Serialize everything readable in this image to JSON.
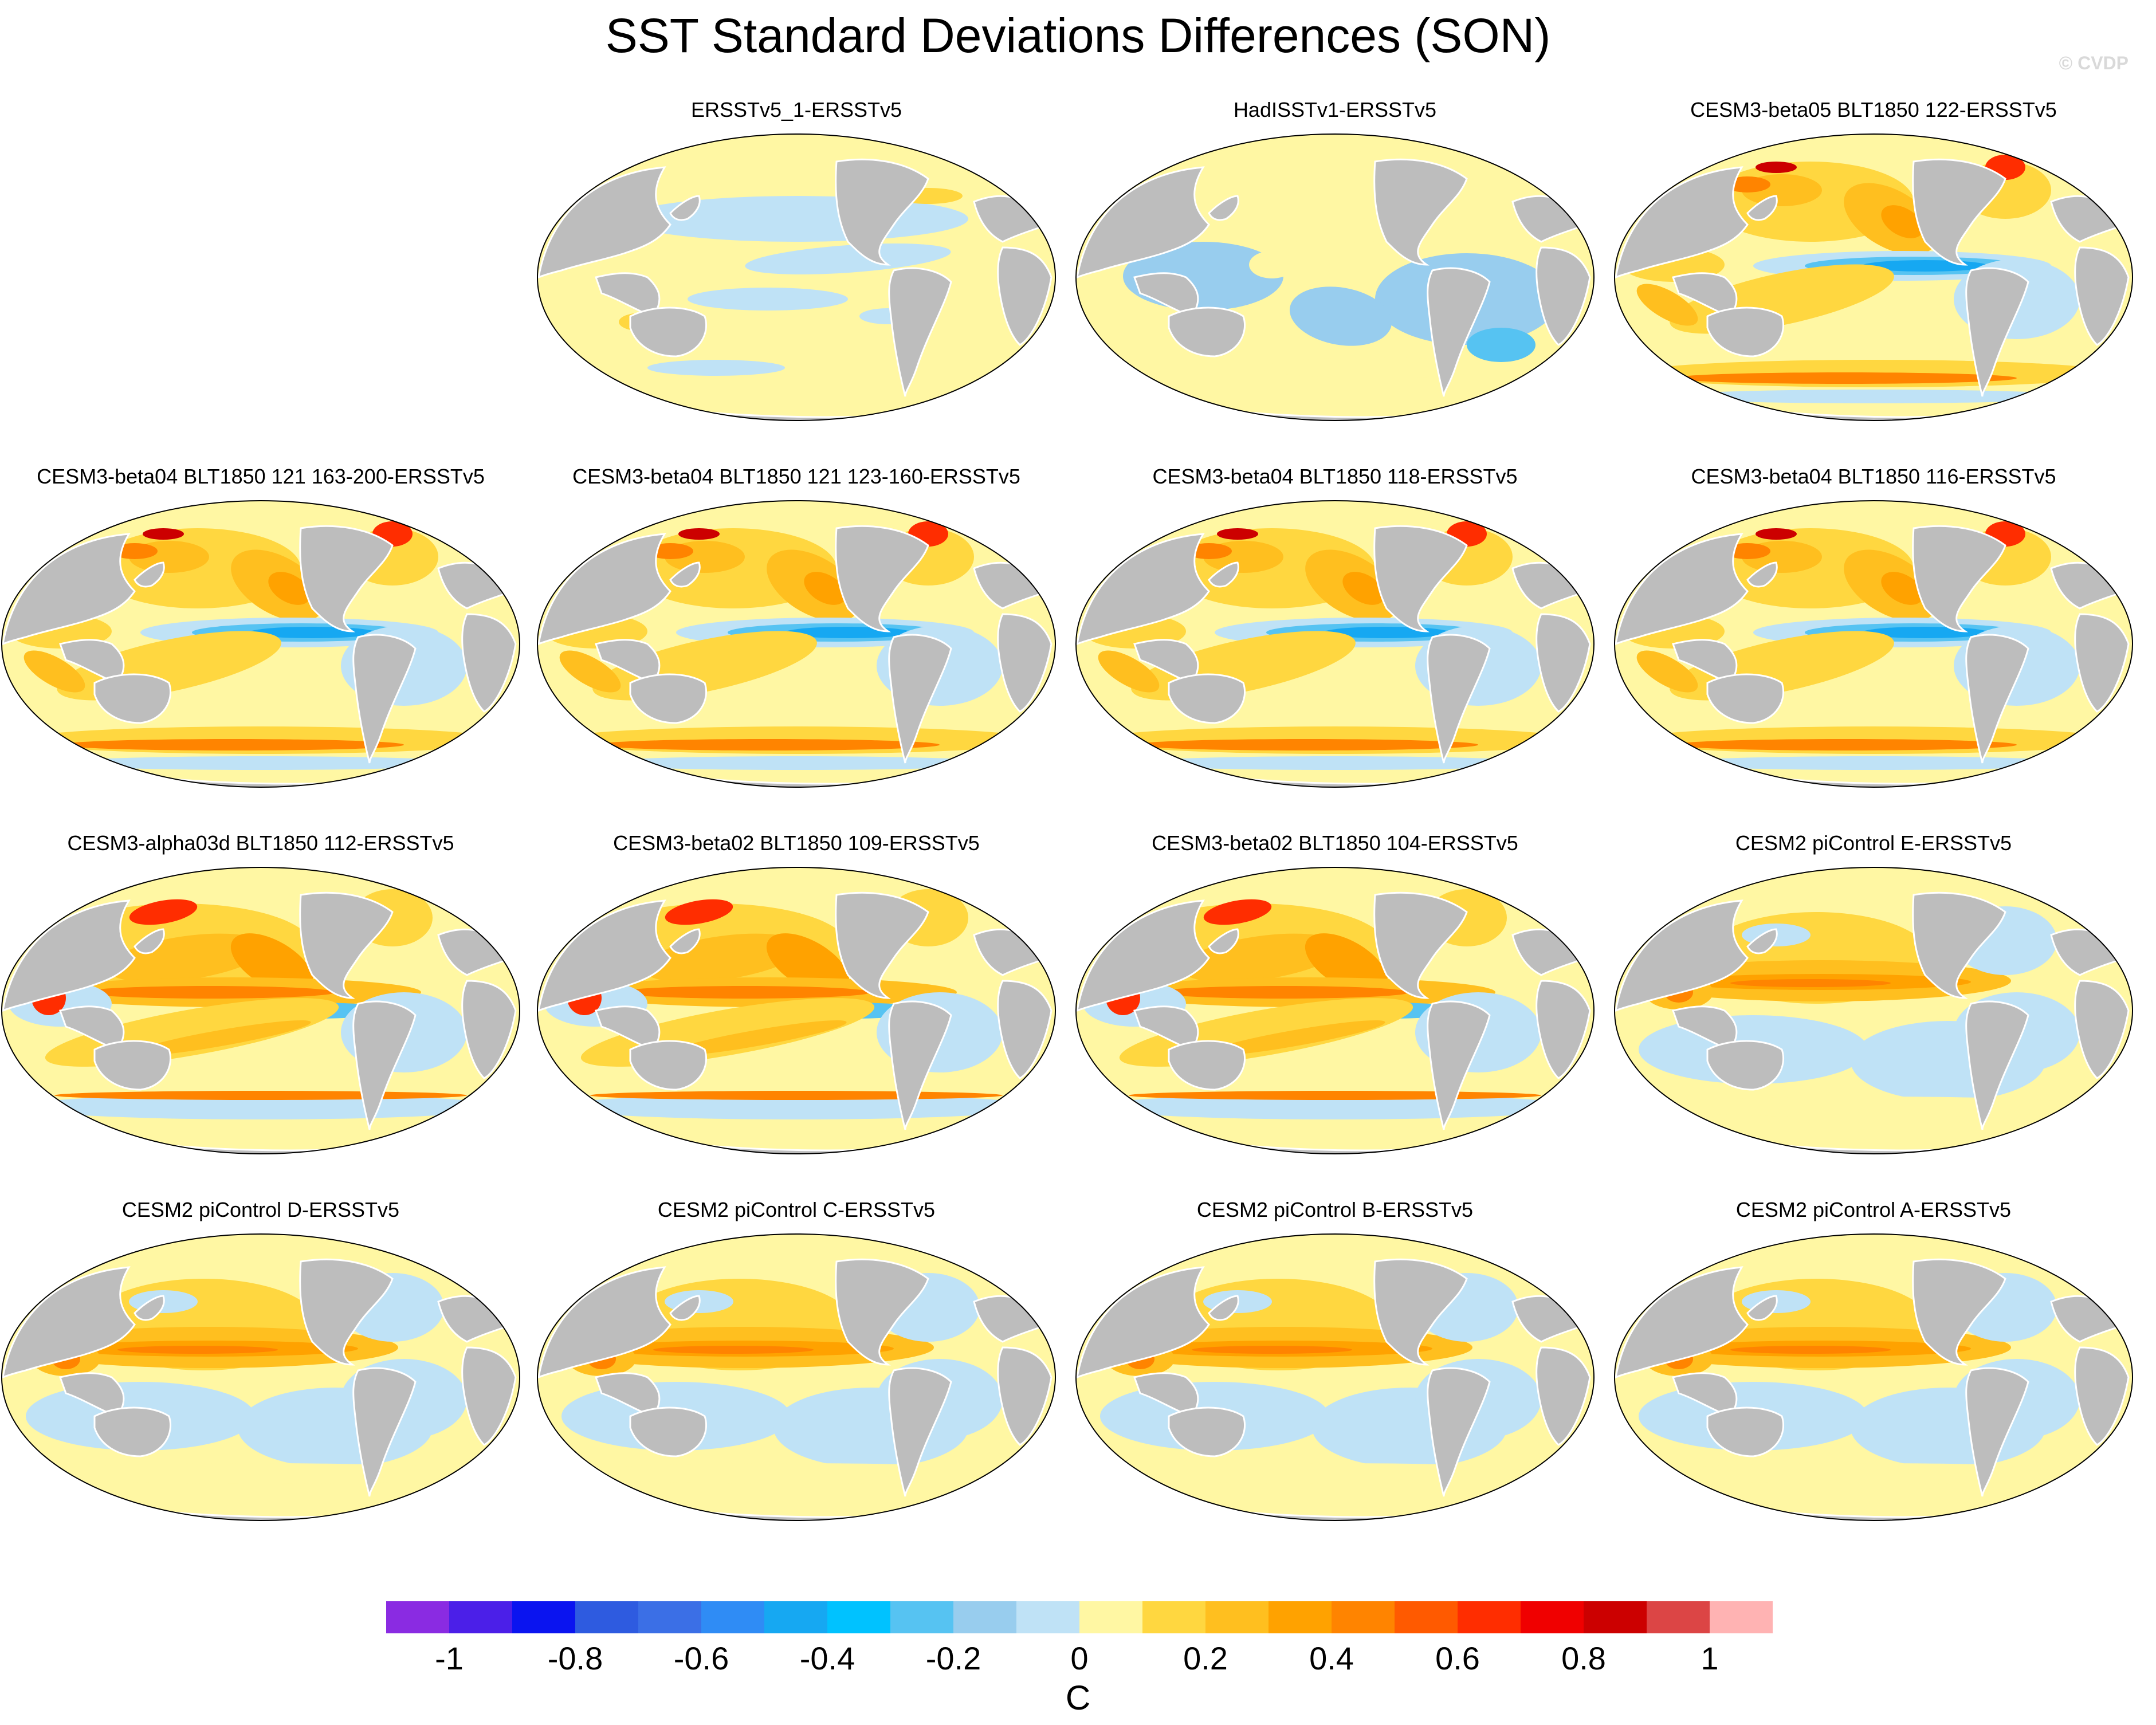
{
  "title": "SST Standard Deviations Differences (SON)",
  "credit": "© CVDP",
  "panels": [
    {
      "label": "ERSSTv5_1-ERSSTv5",
      "pattern": "obs-warm"
    },
    {
      "label": "HadISSTv1-ERSSTv5",
      "pattern": "obs-cool"
    },
    {
      "label": "CESM3-beta05 BLT1850 122-ERSSTv5",
      "pattern": "model-cold-tongue"
    },
    {
      "label": "CESM3-beta04 BLT1850 121 163-200-ERSSTv5",
      "pattern": "model-cold-tongue"
    },
    {
      "label": "CESM3-beta04 BLT1850 121 123-160-ERSSTv5",
      "pattern": "model-cold-tongue"
    },
    {
      "label": "CESM3-beta04 BLT1850 118-ERSSTv5",
      "pattern": "model-cold-tongue"
    },
    {
      "label": "CESM3-beta04 BLT1850 116-ERSSTv5",
      "pattern": "model-cold-tongue"
    },
    {
      "label": "CESM3-alpha03d BLT1850 112-ERSSTv5",
      "pattern": "model-warm"
    },
    {
      "label": "CESM3-beta02 BLT1850 109-ERSSTv5",
      "pattern": "model-warm"
    },
    {
      "label": "CESM3-beta02 BLT1850 104-ERSSTv5",
      "pattern": "model-warm"
    },
    {
      "label": "CESM2 piControl E-ERSSTv5",
      "pattern": "model-enso"
    },
    {
      "label": "CESM2 piControl D-ERSSTv5",
      "pattern": "model-enso"
    },
    {
      "label": "CESM2 piControl C-ERSSTv5",
      "pattern": "model-enso"
    },
    {
      "label": "CESM2 piControl B-ERSSTv5",
      "pattern": "model-enso"
    },
    {
      "label": "CESM2 piControl A-ERSSTv5",
      "pattern": "model-enso"
    }
  ],
  "colorbar": {
    "unit": "C",
    "colors": [
      "#8a2be2",
      "#4b1fe8",
      "#0a14f0",
      "#2e5be0",
      "#3b6fe6",
      "#2f8cf5",
      "#16a8f2",
      "#00c2ff",
      "#56c3f2",
      "#98cdee",
      "#bfe2f6",
      "#fff7a3",
      "#ffd740",
      "#ffbf1f",
      "#ffa200",
      "#ff8400",
      "#ff5a00",
      "#ff2d00",
      "#f00000",
      "#cc0000",
      "#dc4545",
      "#ffb3b3"
    ],
    "tick_labels": [
      "-1",
      "-0.8",
      "-0.6",
      "-0.4",
      "-0.2",
      "0",
      "0.2",
      "0.4",
      "0.6",
      "0.8",
      "1"
    ]
  }
}
